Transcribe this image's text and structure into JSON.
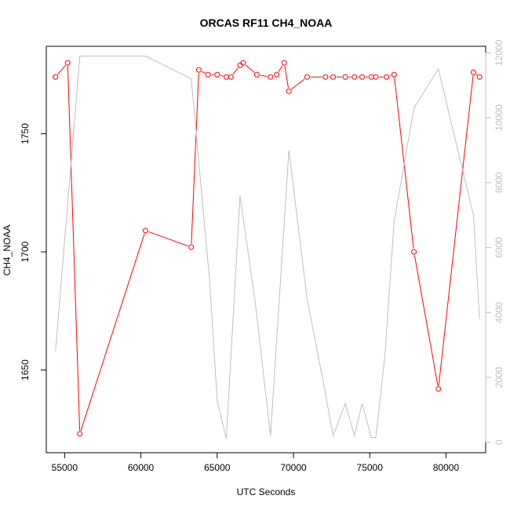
{
  "chart_data": {
    "type": "line",
    "title": "ORCAS RF11 CH4_NOAA",
    "xlabel": "UTC Seconds",
    "ylabel": "CH4_NOAA",
    "xlim": [
      53800,
      82600
    ],
    "ylim": [
      1615,
      1787
    ],
    "y2lim": [
      -320,
      12200
    ],
    "x_ticks": [
      55000,
      60000,
      65000,
      70000,
      75000,
      80000
    ],
    "y_ticks": [
      1650,
      1700,
      1750
    ],
    "y2_ticks": [
      0,
      2000,
      4000,
      6000,
      8000,
      10000,
      12000
    ],
    "grid": false,
    "colors": {
      "series1": "#ff0000",
      "series2": "#bebebe"
    },
    "series": [
      {
        "axis": "left",
        "style": "line+circle",
        "points": [
          [
            54400,
            1774
          ],
          [
            55200,
            1780
          ],
          [
            56000,
            1623
          ],
          [
            60300,
            1709
          ],
          [
            63300,
            1702
          ],
          [
            63800,
            1777
          ],
          [
            64400,
            1775
          ],
          [
            65000,
            1775
          ],
          [
            65600,
            1774
          ],
          [
            65900,
            1774
          ],
          [
            66500,
            1779
          ],
          [
            66700,
            1780
          ],
          [
            67600,
            1775
          ],
          [
            68500,
            1774
          ],
          [
            68900,
            1775
          ],
          [
            69400,
            1780
          ],
          [
            69700,
            1768
          ],
          [
            70900,
            1774
          ],
          [
            72100,
            1774
          ],
          [
            72600,
            1774
          ],
          [
            73400,
            1774
          ],
          [
            74000,
            1774
          ],
          [
            74500,
            1774
          ],
          [
            75100,
            1774
          ],
          [
            75400,
            1774
          ],
          [
            76100,
            1774
          ],
          [
            76600,
            1775
          ],
          [
            77900,
            1700
          ],
          [
            79500,
            1642
          ],
          [
            81800,
            1776
          ],
          [
            82200,
            1774
          ]
        ]
      },
      {
        "axis": "right",
        "style": "line",
        "points": [
          [
            54400,
            2800
          ],
          [
            56000,
            11900
          ],
          [
            60300,
            11900
          ],
          [
            63300,
            11200
          ],
          [
            64500,
            5000
          ],
          [
            65000,
            1300
          ],
          [
            65600,
            100
          ],
          [
            66500,
            7600
          ],
          [
            67500,
            4300
          ],
          [
            68500,
            200
          ],
          [
            69700,
            9000
          ],
          [
            70900,
            4400
          ],
          [
            71900,
            2000
          ],
          [
            72600,
            200
          ],
          [
            73400,
            1200
          ],
          [
            74000,
            200
          ],
          [
            74500,
            1200
          ],
          [
            75100,
            150
          ],
          [
            75400,
            150
          ],
          [
            76000,
            2700
          ],
          [
            76600,
            6800
          ],
          [
            77900,
            10300
          ],
          [
            79500,
            11500
          ],
          [
            81800,
            7000
          ],
          [
            82200,
            3800
          ]
        ]
      }
    ]
  }
}
